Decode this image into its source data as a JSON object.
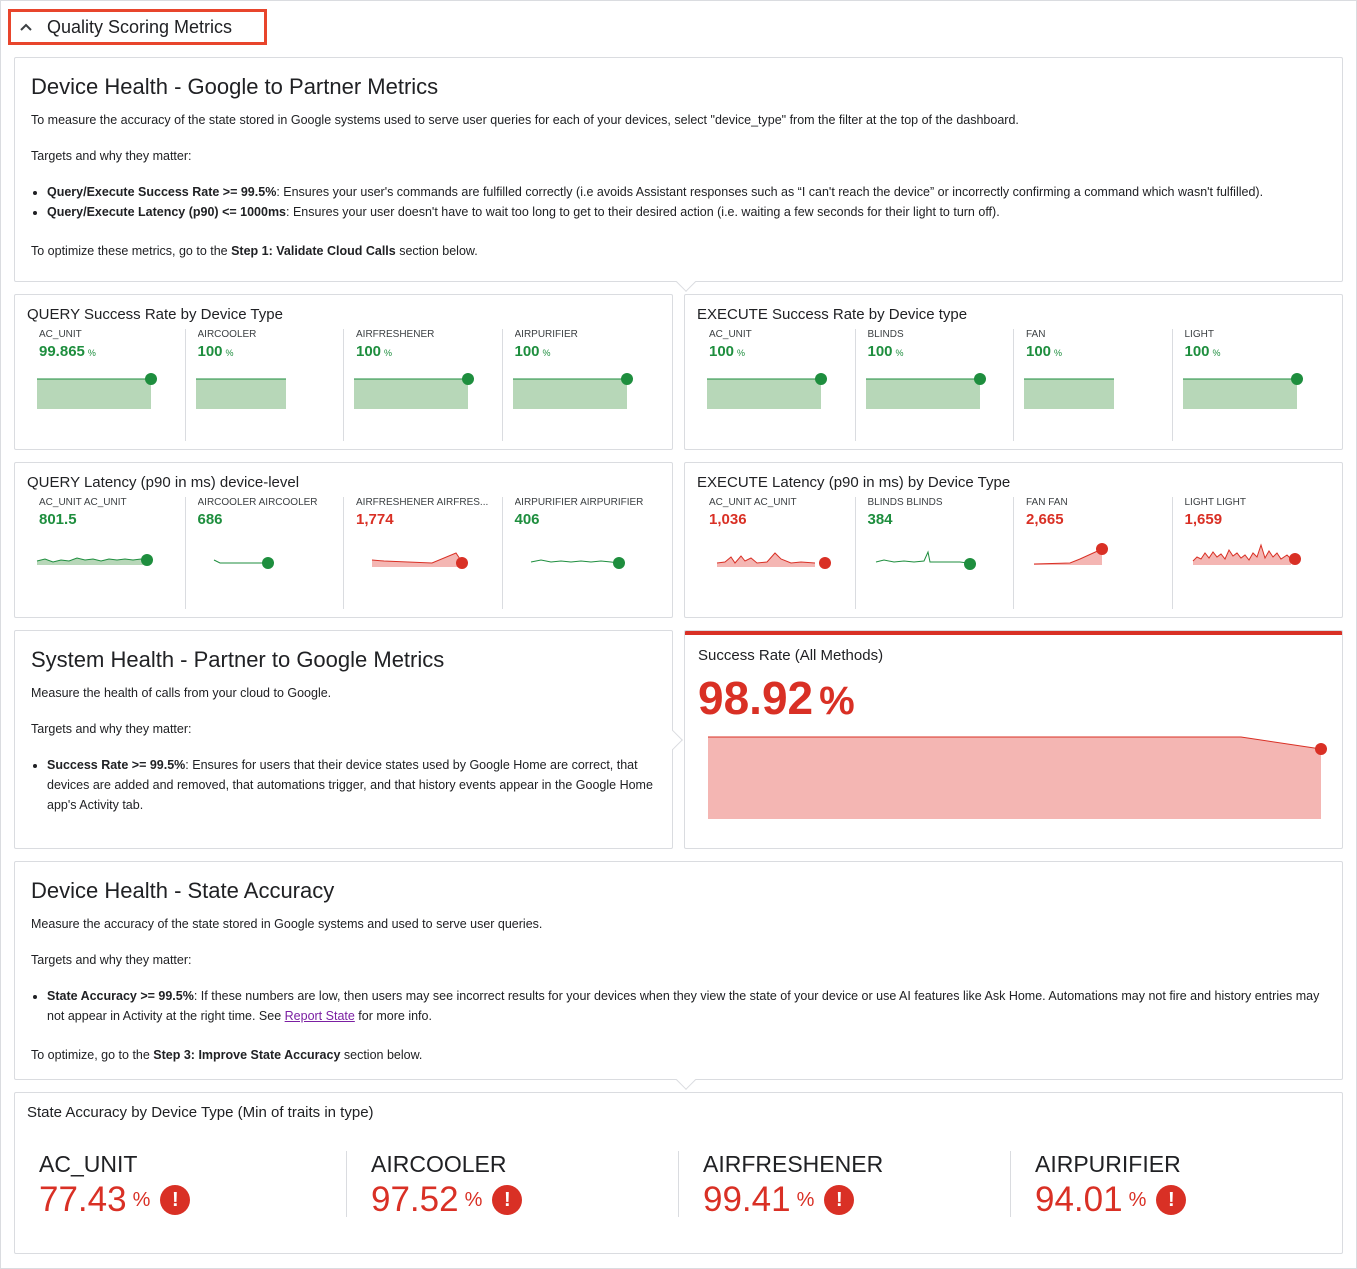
{
  "section": {
    "title": "Quality Scoring Metrics"
  },
  "g2p": {
    "title": "Device Health - Google to Partner Metrics",
    "intro": "To measure the accuracy of the state stored in Google systems used to serve user queries for each of your devices, select \"device_type\" from the filter at the top of the dashboard.",
    "targets_label": "Targets and why they matter:",
    "bullet1_bold": "Query/Execute Success Rate >= 99.5%",
    "bullet1_text": ": Ensures your user's commands are fulfilled correctly (i.e avoids Assistant responses such as “I can't reach the device” or incorrectly confirming a command which wasn't fulfilled).",
    "bullet2_bold": "Query/Execute Latency (p90) <= 1000ms",
    "bullet2_text": ": Ensures your user doesn't have to wait too long to get to their desired action (i.e. waiting a few seconds for their light to turn off).",
    "optimize_prefix": "To optimize these metrics, go to the ",
    "optimize_bold": "Step 1: Validate Cloud Calls",
    "optimize_suffix": " section below."
  },
  "query_success": {
    "title": "QUERY Success Rate by Device Type",
    "tiles": [
      {
        "label": "AC_UNIT",
        "value": "99.865",
        "unit": "%"
      },
      {
        "label": "AIRCOOLER",
        "value": "100",
        "unit": "%"
      },
      {
        "label": "AIRFRESHENER",
        "value": "100",
        "unit": "%"
      },
      {
        "label": "AIRPURIFIER",
        "value": "100",
        "unit": "%"
      }
    ]
  },
  "execute_success": {
    "title": "EXECUTE Success Rate by Device type",
    "tiles": [
      {
        "label": "AC_UNIT",
        "value": "100",
        "unit": "%"
      },
      {
        "label": "BLINDS",
        "value": "100",
        "unit": "%"
      },
      {
        "label": "FAN",
        "value": "100",
        "unit": "%"
      },
      {
        "label": "LIGHT",
        "value": "100",
        "unit": "%"
      }
    ]
  },
  "query_latency": {
    "title": "QUERY Latency (p90 in ms) device-level",
    "tiles": [
      {
        "label": "AC_UNIT AC_UNIT",
        "value": "801.5"
      },
      {
        "label": "AIRCOOLER AIRCOOLER",
        "value": "686"
      },
      {
        "label": "AIRFRESHENER AIRFRES...",
        "value": "1,774"
      },
      {
        "label": "AIRPURIFIER AIRPURIFIER",
        "value": "406"
      }
    ]
  },
  "execute_latency": {
    "title": "EXECUTE Latency (p90 in ms) by Device Type",
    "tiles": [
      {
        "label": "AC_UNIT AC_UNIT",
        "value": "1,036"
      },
      {
        "label": "BLINDS BLINDS",
        "value": "384"
      },
      {
        "label": "FAN FAN",
        "value": "2,665"
      },
      {
        "label": "LIGHT LIGHT",
        "value": "1,659"
      }
    ]
  },
  "p2g": {
    "title": "System Health - Partner to Google Metrics",
    "intro": "Measure the health of calls from your cloud to Google.",
    "targets_label": "Targets and why they matter:",
    "bullet_bold": "Success Rate >= 99.5%",
    "bullet_text": ": Ensures for users that their device states used by Google Home are correct, that devices are added and removed, that automations trigger, and that history events appear in the Google Home app's Activity tab."
  },
  "success_all": {
    "title": "Success Rate (All Methods)",
    "value": "98.92",
    "unit": "%"
  },
  "state_acc": {
    "title": "Device Health - State Accuracy",
    "intro": "Measure the accuracy of the state stored in Google systems and used to serve user queries.",
    "targets_label": "Targets and why they matter:",
    "bullet_bold": "State Accuracy >= 99.5%",
    "bullet_text": ": If these numbers are low, then users may see incorrect results for your devices when they view the state of your device or use AI features like Ask Home. Automations may not fire and history entries may not appear in Activity at the right time. See ",
    "bullet_link": "Report State",
    "bullet_end": " for more info.",
    "optimize_prefix": "To optimize, go to the ",
    "optimize_bold": "Step 3: Improve State Accuracy",
    "optimize_suffix": " section below."
  },
  "state_by_type": {
    "title": "State Accuracy by Device Type (Min of traits in type)",
    "tiles": [
      {
        "label": "AC_UNIT",
        "value": "77.43",
        "unit": "%"
      },
      {
        "label": "AIRCOOLER",
        "value": "97.52",
        "unit": "%"
      },
      {
        "label": "AIRFRESHENER",
        "value": "99.41",
        "unit": "%"
      },
      {
        "label": "AIRPURIFIER",
        "value": "94.01",
        "unit": "%"
      }
    ]
  },
  "colors": {
    "good": "#1e8e3e",
    "bad": "#d93025",
    "good_fill": "#b7d7b8",
    "bad_fill": "#f4b6b3"
  }
}
